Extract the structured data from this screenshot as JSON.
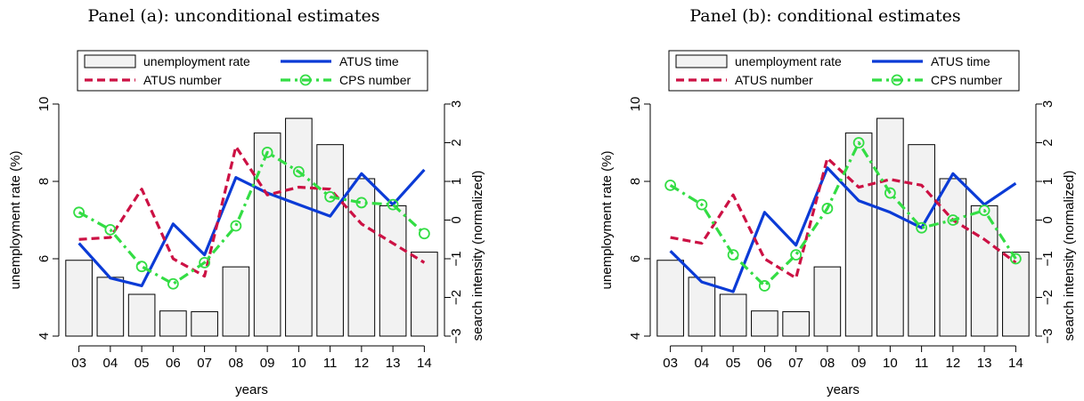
{
  "chart_data": [
    {
      "type": "bar+line",
      "title": "Panel (a): unconditional estimates",
      "xlabel": "years",
      "ylabel": "unemployment rate (%)",
      "y2label": "search intensity (normalized)",
      "categories": [
        "03",
        "04",
        "05",
        "06",
        "07",
        "08",
        "09",
        "10",
        "11",
        "12",
        "13",
        "14"
      ],
      "ylim": [
        4,
        10
      ],
      "yticks": [
        "4",
        "6",
        "8",
        "10"
      ],
      "y2lim": [
        -3,
        3
      ],
      "y2ticks": [
        "−3",
        "−2",
        "−1",
        "0",
        "1",
        "2",
        "3"
      ],
      "legend_position": "top",
      "series": [
        {
          "name": "unemployment rate",
          "kind": "bar",
          "axis": "left",
          "color": "#f2f2f2",
          "values": [
            5.96,
            5.52,
            5.08,
            4.65,
            4.63,
            5.79,
            9.25,
            9.63,
            8.95,
            8.07,
            7.37,
            6.17
          ]
        },
        {
          "name": "ATUS time",
          "kind": "line",
          "axis": "right",
          "color": "#0b3bd6",
          "dash": "solid",
          "values": [
            -0.6,
            -1.5,
            -1.7,
            -0.1,
            -0.9,
            1.1,
            0.7,
            0.4,
            0.1,
            1.2,
            0.4,
            1.3
          ]
        },
        {
          "name": "ATUS number",
          "kind": "line",
          "axis": "right",
          "color": "#cc1144",
          "dash": "dash",
          "values": [
            -0.5,
            -0.45,
            0.8,
            -1.0,
            -1.45,
            1.9,
            0.65,
            0.85,
            0.8,
            -0.1,
            -0.6,
            -1.1
          ]
        },
        {
          "name": "CPS number",
          "kind": "line",
          "axis": "right",
          "color": "#33dd44",
          "dash": "dashdot",
          "marker": "circle",
          "values": [
            0.2,
            -0.25,
            -1.2,
            -1.65,
            -1.1,
            -0.15,
            1.75,
            1.25,
            0.6,
            0.45,
            0.4,
            -0.35
          ]
        }
      ]
    },
    {
      "type": "bar+line",
      "title": "Panel (b): conditional estimates",
      "xlabel": "years",
      "ylabel": "unemployment rate (%)",
      "y2label": "search intensity (normalized)",
      "categories": [
        "03",
        "04",
        "05",
        "06",
        "07",
        "08",
        "09",
        "10",
        "11",
        "12",
        "13",
        "14"
      ],
      "ylim": [
        4,
        10
      ],
      "yticks": [
        "4",
        "6",
        "8",
        "10"
      ],
      "y2lim": [
        -3,
        3
      ],
      "y2ticks": [
        "−3",
        "−2",
        "−1",
        "0",
        "1",
        "2",
        "3"
      ],
      "legend_position": "top",
      "series": [
        {
          "name": "unemployment rate",
          "kind": "bar",
          "axis": "left",
          "color": "#f2f2f2",
          "values": [
            5.96,
            5.52,
            5.08,
            4.65,
            4.63,
            5.79,
            9.25,
            9.63,
            8.95,
            8.07,
            7.37,
            6.17
          ]
        },
        {
          "name": "ATUS time",
          "kind": "line",
          "axis": "right",
          "color": "#0b3bd6",
          "dash": "solid",
          "values": [
            -0.8,
            -1.6,
            -1.85,
            0.2,
            -0.65,
            1.35,
            0.5,
            0.2,
            -0.2,
            1.2,
            0.4,
            0.95
          ]
        },
        {
          "name": "ATUS number",
          "kind": "line",
          "axis": "right",
          "color": "#cc1144",
          "dash": "dash",
          "values": [
            -0.45,
            -0.6,
            0.65,
            -1.0,
            -1.5,
            1.6,
            0.85,
            1.05,
            0.9,
            0.0,
            -0.5,
            -1.1
          ]
        },
        {
          "name": "CPS number",
          "kind": "line",
          "axis": "right",
          "color": "#33dd44",
          "dash": "dashdot",
          "marker": "circle",
          "values": [
            0.9,
            0.4,
            -0.9,
            -1.7,
            -0.9,
            0.3,
            2.0,
            0.7,
            -0.2,
            0.0,
            0.25,
            -1.0
          ]
        }
      ]
    }
  ]
}
